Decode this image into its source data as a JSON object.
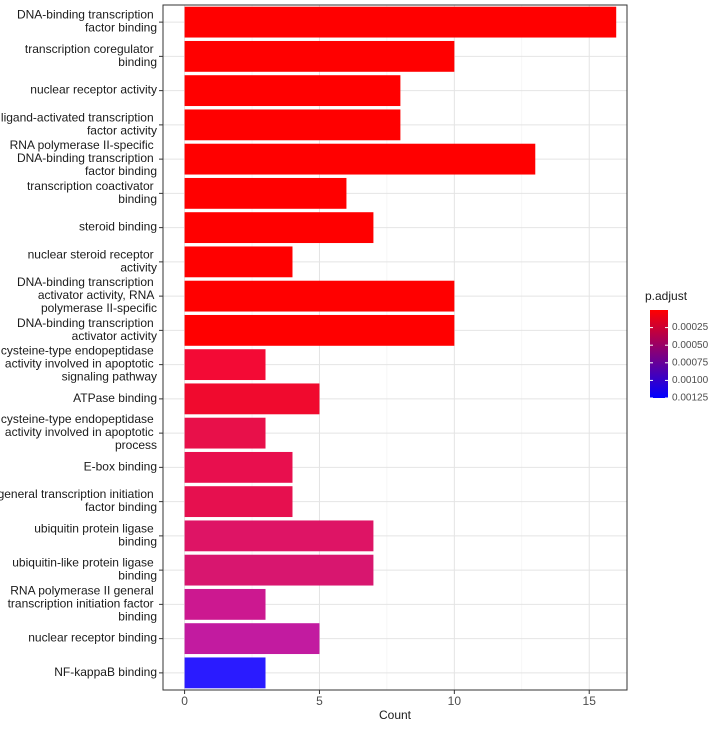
{
  "chart_data": {
    "type": "barh",
    "categories": [
      "DNA-binding transcription factor binding",
      "transcription coregulator binding",
      "nuclear receptor activity",
      "ligand-activated transcription factor activity",
      "RNA polymerase II-specific DNA-binding transcription factor binding",
      "transcription coactivator binding",
      "steroid binding",
      "nuclear steroid receptor activity",
      "DNA-binding transcription activator activity, RNA polymerase II-specific",
      "DNA-binding transcription activator activity",
      "cysteine-type endopeptidase activity involved in apoptotic signaling pathway",
      "ATPase binding",
      "cysteine-type endopeptidase activity involved in apoptotic process",
      "E-box binding",
      "general transcription initiation factor binding",
      "ubiquitin protein ligase binding",
      "ubiquitin-like protein ligase binding",
      "RNA polymerase II general transcription initiation factor binding",
      "nuclear receptor binding",
      "NF-kappaB binding"
    ],
    "values": [
      16,
      10,
      8,
      8,
      13,
      6,
      7,
      4,
      10,
      10,
      3,
      5,
      3,
      4,
      4,
      7,
      7,
      3,
      5,
      3
    ],
    "colors": [
      "#ff0000",
      "#ff0000",
      "#ff0000",
      "#ff0000",
      "#ff0000",
      "#ff0000",
      "#ff0000",
      "#ff0000",
      "#ff0000",
      "#ff0000",
      "#f30a35",
      "#f00a2e",
      "#e8104a",
      "#e80f4e",
      "#e6104f",
      "#de1465",
      "#d8166f",
      "#cc1890",
      "#c21ba0",
      "#2a1bff"
    ],
    "x_label": "Count",
    "xlim": [
      -0.8,
      16.4
    ],
    "xticks": [
      0,
      5,
      10,
      15
    ],
    "grid": true,
    "colorbar": {
      "title": "p.adjust",
      "lim": [
        0,
        0.00125
      ],
      "colors": [
        "#ff0000",
        "#0000ff"
      ],
      "ticks": [
        0.00025,
        {
          "value": 0.0005,
          "label": "0.00050"
        },
        0.00075,
        {
          "value": 0.001,
          "label": "0.00100"
        },
        0.00125
      ]
    }
  }
}
